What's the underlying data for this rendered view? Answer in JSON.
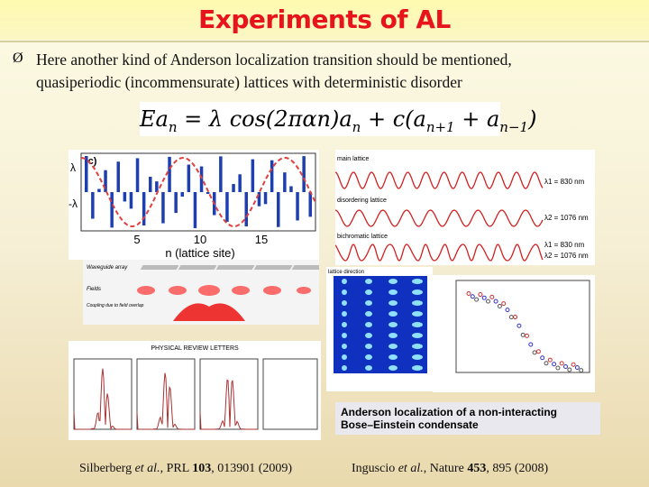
{
  "header": {
    "title": "Experiments of AL"
  },
  "bullet": {
    "marker": "Ø",
    "lines": [
      "Here another kind of Anderson localization transition should be mentioned,",
      "quasiperiodic (incommensurate) lattices with deterministic disorder"
    ]
  },
  "equation": {
    "parts": [
      "Ea",
      "n",
      " = λ cos(2παn)a",
      "n",
      " + c(a",
      "n+1",
      " + a",
      "n−1",
      ")"
    ]
  },
  "figures": {
    "lattice_plot": {
      "panel": "(c)",
      "y_labels": [
        "λ",
        "-λ"
      ],
      "x_ticks": [
        "5",
        "10",
        "15"
      ],
      "x_label": "n (lattice site)"
    },
    "bichromatic": {
      "rows": [
        "main lattice",
        "disordering lattice",
        "bichromatic lattice"
      ],
      "wavelengths": [
        "λ1 = 830 nm",
        "λ2 = 1076 nm",
        "λ1 = 830 nm",
        "λ2 = 1076 nm"
      ]
    },
    "waveguide": {
      "labels": [
        "Waveguide array",
        "Fields",
        "Coupling due to field overlap"
      ]
    },
    "bec_images": {
      "label": "lattice direction"
    },
    "prl": {
      "header": "PHYSICAL REVIEW LETTERS"
    },
    "caption": {
      "lines": [
        "Anderson localization of a non-interacting",
        "Bose–Einstein condensate"
      ]
    }
  },
  "citations": [
    {
      "parts": [
        "Silberberg ",
        "et al.",
        ", PRL ",
        "103",
        ", 013901 (2009)"
      ]
    },
    {
      "parts": [
        "Inguscio ",
        "et al.",
        ", Nature ",
        "453",
        ", 895 (2008)"
      ]
    }
  ]
}
